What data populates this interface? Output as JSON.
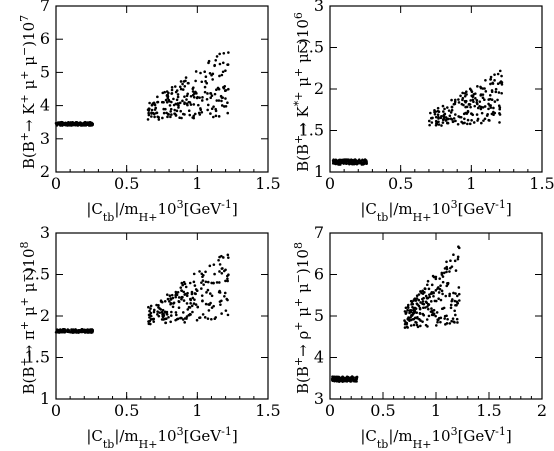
{
  "chart_data": [
    {
      "type": "scatter",
      "xlim": [
        0,
        1.5
      ],
      "ylim": [
        2,
        7
      ],
      "xticks": [
        0,
        0.5,
        1,
        1.5
      ],
      "xtick_labels": [
        "0",
        "0.5",
        "1",
        "1.5"
      ],
      "yticks": [
        2,
        3,
        4,
        5,
        6,
        7
      ],
      "ytick_labels": [
        "2",
        "3",
        "4",
        "5",
        "6",
        "7"
      ],
      "xlabel": "|C_tb|/m_H+ 10^3 [GeV^-1]",
      "ylabel": "B(B+ → K+ μ+ μ−) 10^7",
      "series": [
        {
          "cluster": "band",
          "x_range": [
            0,
            0.26
          ],
          "y_center": 3.45,
          "y_halfwidth": 0.05,
          "count": 170
        },
        {
          "cluster": "cloud",
          "x_range": [
            0.65,
            1.22
          ],
          "y_base": 3.55,
          "y_spread_max": 2.1,
          "count": 210
        }
      ],
      "grid": false,
      "legend": "none"
    },
    {
      "type": "scatter",
      "xlim": [
        0,
        1.5
      ],
      "ylim": [
        1,
        3
      ],
      "xticks": [
        0,
        0.5,
        1,
        1.5
      ],
      "xtick_labels": [
        "0",
        "0.5",
        "1",
        "1.5"
      ],
      "yticks": [
        1,
        1.5,
        2,
        2.5,
        3
      ],
      "ytick_labels": [
        "1",
        "1.5",
        "2",
        "2.5",
        "3"
      ],
      "xlabel": "|C_tb|/m_H+ 10^3 [GeV^-1]",
      "ylabel": "B(B+ → K*+ μ+ μ−) 10^6",
      "series": [
        {
          "cluster": "band",
          "x_range": [
            0.02,
            0.26
          ],
          "y_center": 1.12,
          "y_halfwidth": 0.03,
          "count": 150
        },
        {
          "cluster": "cloud",
          "x_range": [
            0.7,
            1.22
          ],
          "y_base": 1.55,
          "y_spread_max": 0.65,
          "count": 200
        }
      ],
      "grid": false,
      "legend": "none"
    },
    {
      "type": "scatter",
      "xlim": [
        0,
        1.5
      ],
      "ylim": [
        1,
        3
      ],
      "xticks": [
        0,
        0.5,
        1,
        1.5
      ],
      "xtick_labels": [
        "0",
        "0.5",
        "1",
        "1.5"
      ],
      "yticks": [
        1,
        1.5,
        2,
        2.5,
        3
      ],
      "ytick_labels": [
        "1",
        "1.5",
        "2",
        "2.5",
        "3"
      ],
      "xlabel": "|C_tb|/m_H+ 10^3 [GeV^-1]",
      "ylabel": "B(B+ → π+ μ+ μ−) 10^8",
      "series": [
        {
          "cluster": "band",
          "x_range": [
            0,
            0.26
          ],
          "y_center": 1.82,
          "y_halfwidth": 0.02,
          "count": 170
        },
        {
          "cluster": "cloud",
          "x_range": [
            0.65,
            1.22
          ],
          "y_base": 1.9,
          "y_spread_max": 0.85,
          "count": 210
        }
      ],
      "grid": false,
      "legend": "none"
    },
    {
      "type": "scatter",
      "xlim": [
        0,
        2
      ],
      "ylim": [
        3,
        7
      ],
      "xticks": [
        0,
        0.5,
        1,
        1.5,
        2
      ],
      "xtick_labels": [
        "0",
        "0.5",
        "1",
        "1.5",
        "2"
      ],
      "yticks": [
        3,
        4,
        5,
        6,
        7
      ],
      "ytick_labels": [
        "3",
        "4",
        "5",
        "6",
        "7"
      ],
      "xlabel": "|C_tb|/m_H+ 10^3 [GeV^-1]",
      "ylabel": "B(B+ → ρ+ μ+ μ−) 10^8",
      "series": [
        {
          "cluster": "band",
          "x_range": [
            0.02,
            0.26
          ],
          "y_center": 3.48,
          "y_halfwidth": 0.06,
          "count": 160
        },
        {
          "cluster": "cloud",
          "x_range": [
            0.7,
            1.22
          ],
          "y_base": 4.7,
          "y_spread_max": 1.9,
          "count": 220
        }
      ],
      "grid": false,
      "legend": "none"
    }
  ]
}
